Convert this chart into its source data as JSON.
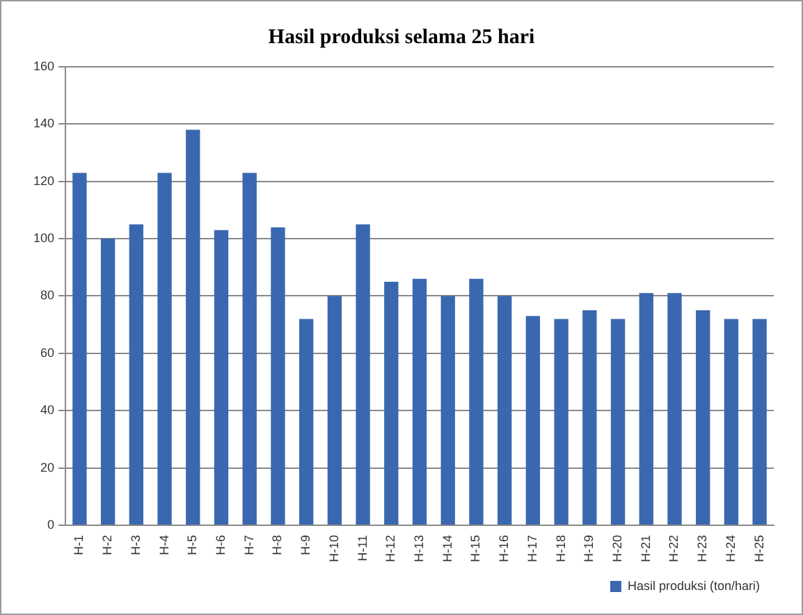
{
  "chart_data": {
    "type": "bar",
    "title": "Hasil produksi selama 25 hari",
    "categories": [
      "H-1",
      "H-2",
      "H-3",
      "H-4",
      "H-5",
      "H-6",
      "H-7",
      "H-8",
      "H-9",
      "H-10",
      "H-11",
      "H-12",
      "H-13",
      "H-14",
      "H-15",
      "H-16",
      "H-17",
      "H-18",
      "H-19",
      "H-20",
      "H-21",
      "H-22",
      "H-23",
      "H-24",
      "H-25"
    ],
    "series": [
      {
        "name": "Hasil produksi (ton/hari)",
        "color": "#3a68b0",
        "values": [
          123,
          100,
          105,
          123,
          138,
          103,
          123,
          104,
          72,
          80,
          105,
          85,
          86,
          80,
          86,
          80,
          73,
          72,
          75,
          72,
          81,
          81,
          75,
          72,
          72
        ]
      }
    ],
    "ylim": [
      0,
      160
    ],
    "yticks": [
      0,
      20,
      40,
      60,
      80,
      100,
      120,
      140,
      160
    ],
    "grid": "y",
    "legend": "bottom right"
  }
}
